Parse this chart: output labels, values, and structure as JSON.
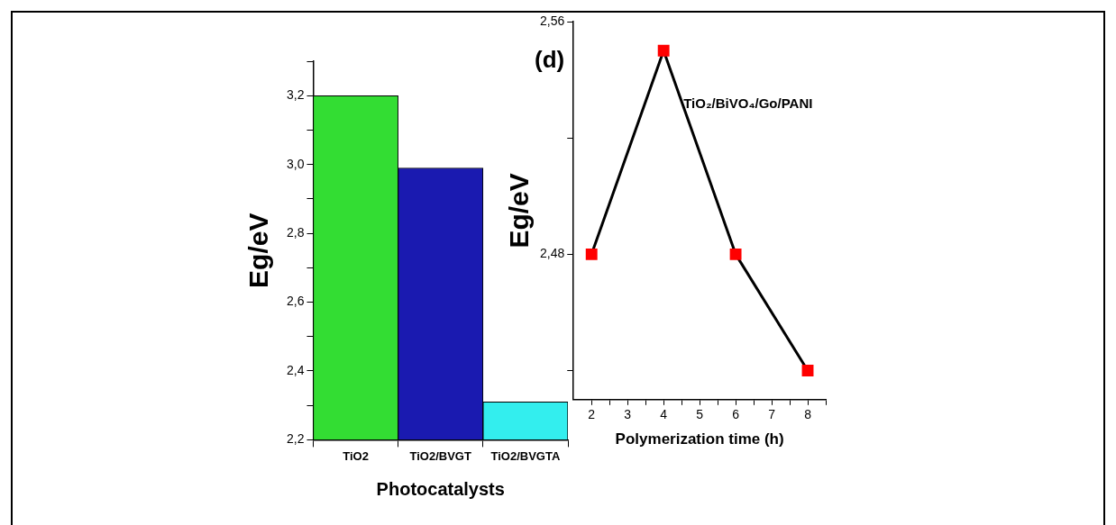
{
  "chart_data": [
    {
      "type": "bar",
      "xlabel": "Photocatalysts",
      "ylabel": "Eg/eV",
      "categories": [
        "TiO2",
        "TiO2/BVGT",
        "TiO2/BVGTA"
      ],
      "values": [
        3.2,
        2.99,
        2.31
      ],
      "colors": [
        "#33dd33",
        "#1a1ab0",
        "#33eeee"
      ],
      "ylim": [
        2.2,
        3.3
      ],
      "yticks": [
        {
          "value": 2.2,
          "label": "2,2"
        },
        {
          "value": 2.3,
          "label": null
        },
        {
          "value": 2.4,
          "label": "2,4"
        },
        {
          "value": 2.5,
          "label": null
        },
        {
          "value": 2.6,
          "label": "2,6"
        },
        {
          "value": 2.7,
          "label": null
        },
        {
          "value": 2.8,
          "label": "2,8"
        },
        {
          "value": 2.9,
          "label": null
        },
        {
          "value": 3.0,
          "label": "3,0"
        },
        {
          "value": 3.1,
          "label": null
        },
        {
          "value": 3.2,
          "label": "3,2"
        },
        {
          "value": 3.3,
          "label": null
        }
      ],
      "grid": false,
      "legend": false
    },
    {
      "type": "line",
      "xlabel": "Polymerization time (h)",
      "ylabel": "Eg/eV",
      "annotations": [
        "(d)"
      ],
      "x": [
        2,
        4,
        6,
        8
      ],
      "series": [
        {
          "name": "TiO₂/BiVO₄/Go/PANI",
          "color": "#ff0000",
          "values": [
            2.48,
            2.55,
            2.48,
            2.44
          ]
        }
      ],
      "xlim": [
        1.5,
        8.5
      ],
      "xticks": [
        2,
        {
          "value": 2.5,
          "label": null
        },
        3,
        {
          "value": 3.5,
          "label": null
        },
        4,
        {
          "value": 4.5,
          "label": null
        },
        5,
        {
          "value": 5.5,
          "label": null
        },
        6,
        {
          "value": 6.5,
          "label": null
        },
        7,
        {
          "value": 7.5,
          "label": null
        },
        8,
        {
          "value": 8.5,
          "label": null
        }
      ],
      "ylim": [
        2.43,
        2.56
      ],
      "yticks": [
        {
          "value": 2.44,
          "label": null
        },
        {
          "value": 2.48,
          "label": "2,48"
        },
        {
          "value": 2.52,
          "label": null
        },
        {
          "value": 2.56,
          "label": "2,56"
        }
      ],
      "marker": "square",
      "line_style": "solid",
      "grid": false,
      "legend": false
    }
  ]
}
